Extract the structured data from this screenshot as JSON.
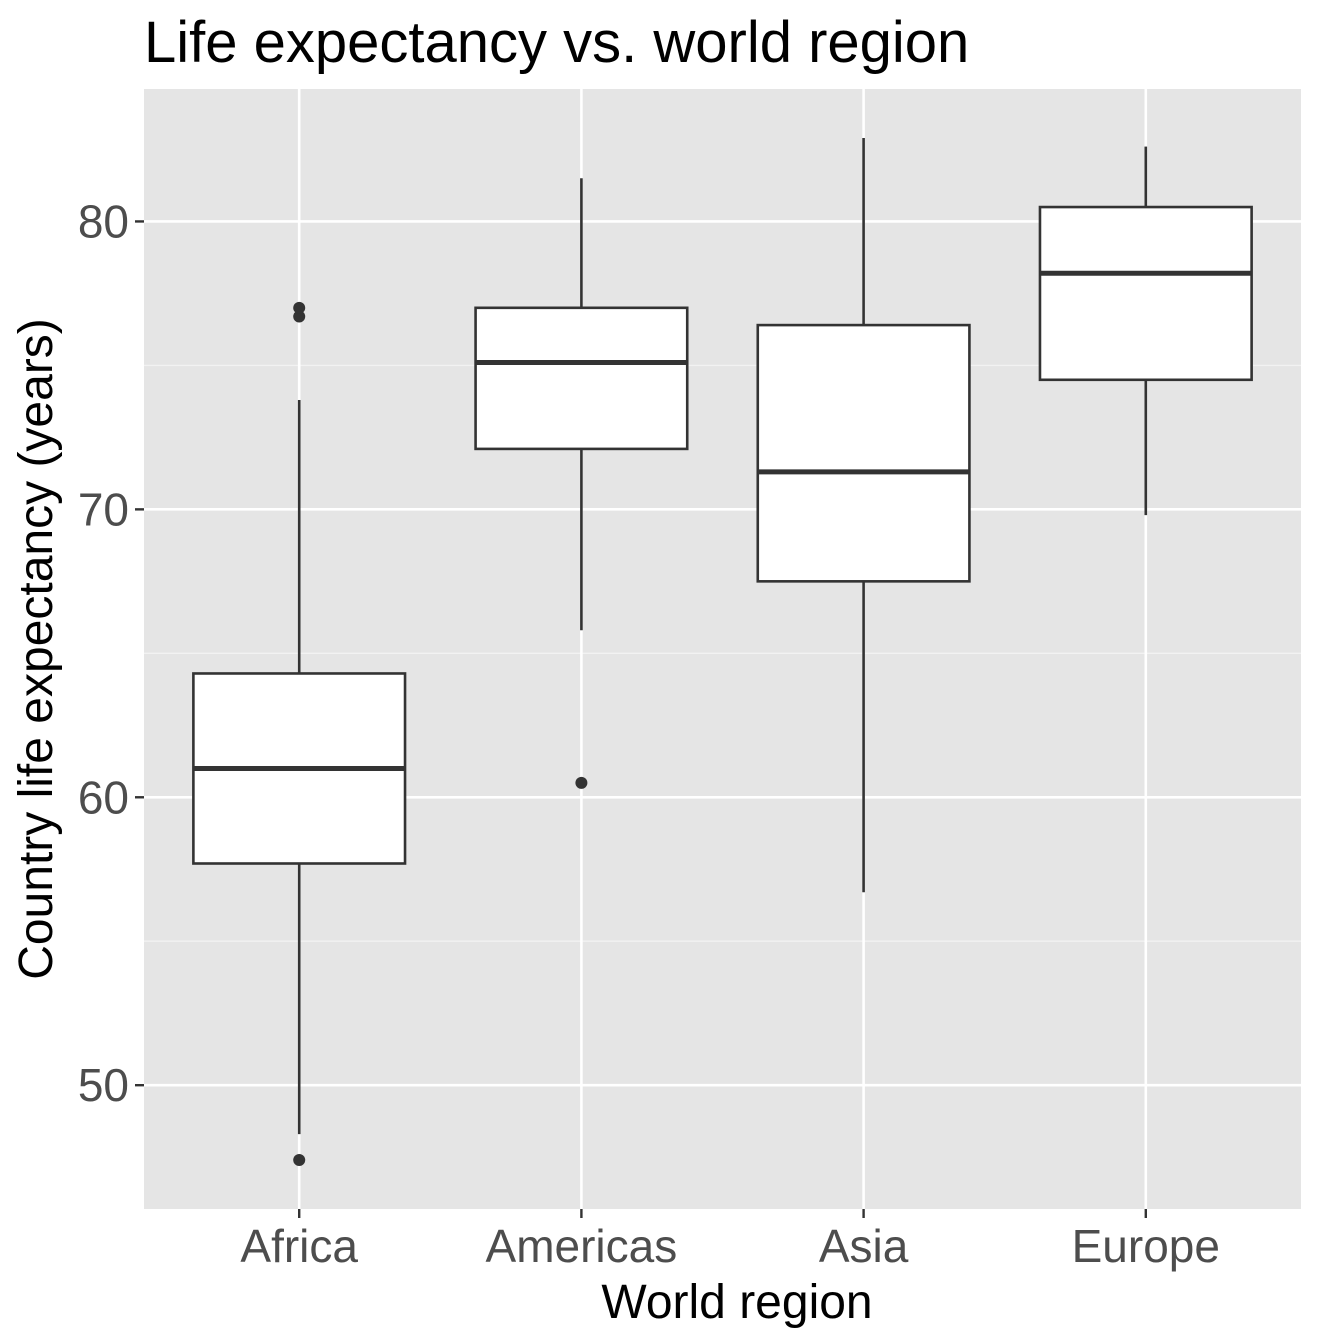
{
  "chart_data": {
    "type": "boxplot",
    "title": "Life expectancy vs. world region",
    "xlabel": "World region",
    "ylabel": "Country life expectancy (years)",
    "ylim": [
      45.7,
      84.6
    ],
    "yticks": [
      50,
      60,
      70,
      80
    ],
    "ytick_labels": [
      "50",
      "60",
      "70",
      "80"
    ],
    "grid": true,
    "categories": [
      "Africa",
      "Americas",
      "Asia",
      "Europe"
    ],
    "boxes": [
      {
        "category": "Africa",
        "whisker_low": 48.3,
        "q1": 57.7,
        "median": 61.0,
        "q3": 64.3,
        "whisker_high": 73.8,
        "outliers": [
          47.4,
          76.7,
          77.0
        ]
      },
      {
        "category": "Americas",
        "whisker_low": 65.8,
        "q1": 72.1,
        "median": 75.1,
        "q3": 77.0,
        "whisker_high": 81.5,
        "outliers": [
          60.5
        ]
      },
      {
        "category": "Asia",
        "whisker_low": 56.7,
        "q1": 67.5,
        "median": 71.3,
        "q3": 76.4,
        "whisker_high": 82.9,
        "outliers": []
      },
      {
        "category": "Europe",
        "whisker_low": 69.8,
        "q1": 74.5,
        "median": 78.2,
        "q3": 80.5,
        "whisker_high": 82.6,
        "outliers": []
      }
    ],
    "colors": {
      "panel_background": "#e5e5e5",
      "grid_major": "#ffffff",
      "grid_minor": "#f2f2f2",
      "box_fill": "#ffffff",
      "box_line": "#333333",
      "outlier": "#333333"
    }
  }
}
